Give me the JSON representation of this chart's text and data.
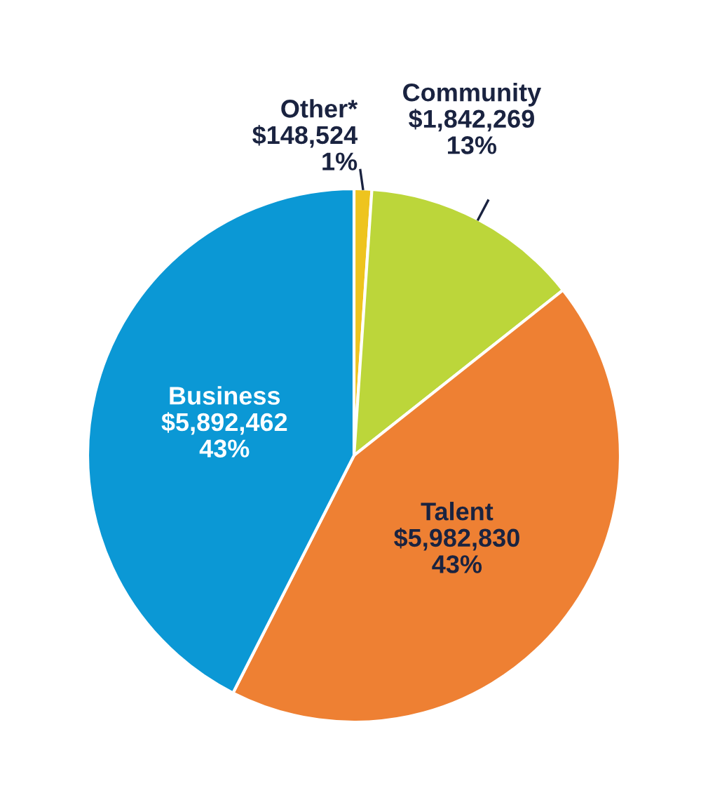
{
  "chart_data": {
    "type": "pie",
    "categories": [
      "Other*",
      "Community",
      "Talent",
      "Business"
    ],
    "values": [
      148524,
      1842269,
      5982830,
      5892462
    ],
    "value_labels": [
      "$148,524\n1%",
      "$1,842,269\n13%",
      "$5,982,830\n43%",
      "$5,892,462\n43%"
    ],
    "colors": [
      "#eec41e",
      "#bcd63a",
      "#ee8033",
      "#0b98d5"
    ]
  }
}
